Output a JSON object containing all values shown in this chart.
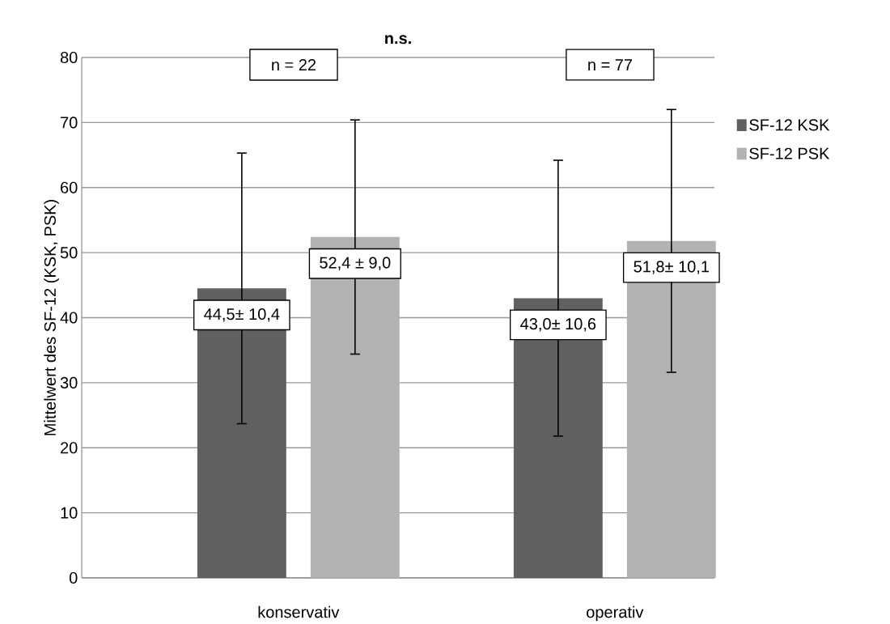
{
  "chart_data": {
    "type": "bar",
    "title": "n.s.",
    "ylabel": "Mittelwert des SF-12 (KSK, PSK)",
    "categories": [
      "konservativ",
      "operativ"
    ],
    "series": [
      {
        "name": "SF-12 KSK",
        "color": "#606060",
        "values": [
          44.5,
          43.0
        ],
        "errors": [
          20.8,
          21.2
        ],
        "value_labels": [
          "44,5± 10,4",
          "43,0± 10,6"
        ]
      },
      {
        "name": "SF-12 PSK",
        "color": "#b2b2b2",
        "values": [
          52.4,
          51.8
        ],
        "errors": [
          18.0,
          20.2
        ],
        "value_labels": [
          "52,4 ± 9,0",
          "51,8± 10,1"
        ]
      }
    ],
    "ylim": [
      0,
      80
    ],
    "yticks": [
      0,
      10,
      20,
      30,
      40,
      50,
      60,
      70,
      80
    ],
    "grid": "y",
    "legend": "right",
    "annotations": [
      "n = 22",
      "n = 77"
    ]
  }
}
